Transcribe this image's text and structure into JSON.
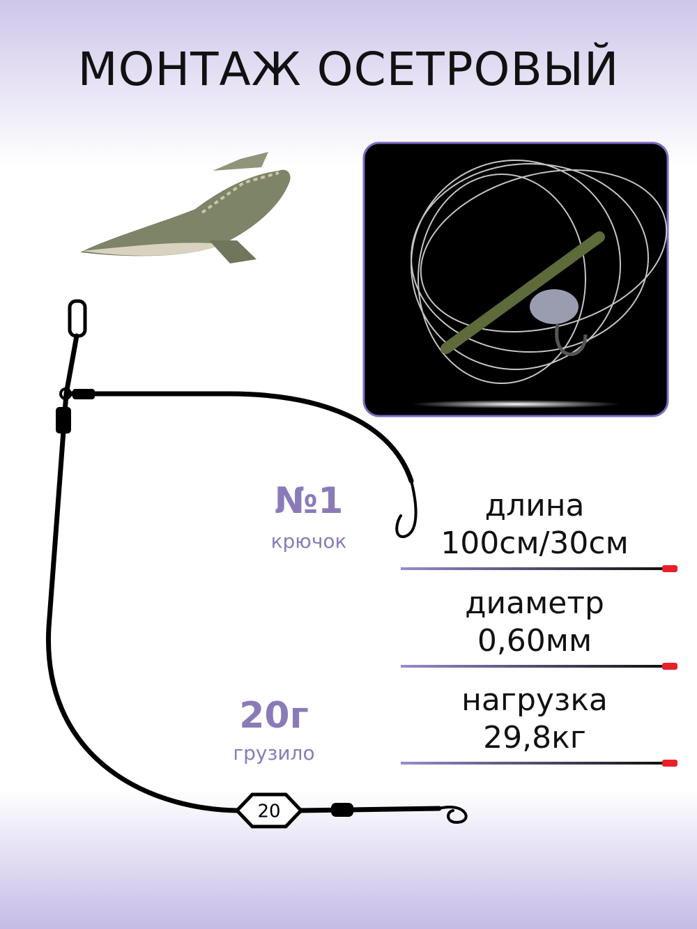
{
  "header": {
    "title": "МОНТАЖ ОСЕТРОВЫЙ"
  },
  "hook": {
    "number": "№1",
    "label": "крючок"
  },
  "sinker": {
    "weight": "20г",
    "label": "грузило",
    "mark": "20"
  },
  "specs": [
    {
      "label": "длина",
      "value": "100см/30см"
    },
    {
      "label": "диаметр",
      "value": "0,60мм"
    },
    {
      "label": "нагрузка",
      "value": "29,8кг"
    }
  ]
}
